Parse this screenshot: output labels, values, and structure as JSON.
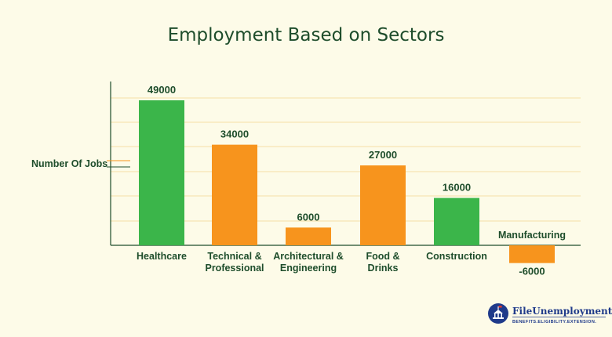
{
  "chart_data": {
    "type": "bar",
    "title": "Employment Based on Sectors",
    "ylabel": "Number Of Jobs",
    "xlabel": "",
    "categories": [
      "Healthcare",
      "Technical & Professional",
      "Architectural & Engineering",
      "Food & Drinks",
      "Construction",
      "Manufacturing"
    ],
    "category_lines": [
      [
        "Healthcare"
      ],
      [
        "Technical &",
        "Professional"
      ],
      [
        "Architectural &",
        "Engineering"
      ],
      [
        "Food &",
        "Drinks"
      ],
      [
        "Construction"
      ],
      [
        "Manufacturing"
      ]
    ],
    "values": [
      49000,
      34000,
      6000,
      27000,
      16000,
      -6000
    ],
    "value_labels": [
      "49000",
      "34000",
      "6000",
      "27000",
      "16000",
      "-6000"
    ],
    "ylim": [
      -6000,
      55000
    ],
    "grid": true,
    "colors": {
      "green": "#3bb54a",
      "orange": "#f7941d",
      "grid": "#f5dfa6",
      "axis": "#1e4d2b",
      "text": "#1e4d2b",
      "background": "#fdfbe8"
    },
    "bar_colors": [
      "#3bb54a",
      "#f7941d",
      "#f7941d",
      "#f7941d",
      "#3bb54a",
      "#f7941d"
    ]
  },
  "logo": {
    "name": "FileUnemployment.org",
    "tagline": "BENEFITS.ELIGIBILITY.EXTENSION.",
    "icon": "capitol-building-icon"
  }
}
